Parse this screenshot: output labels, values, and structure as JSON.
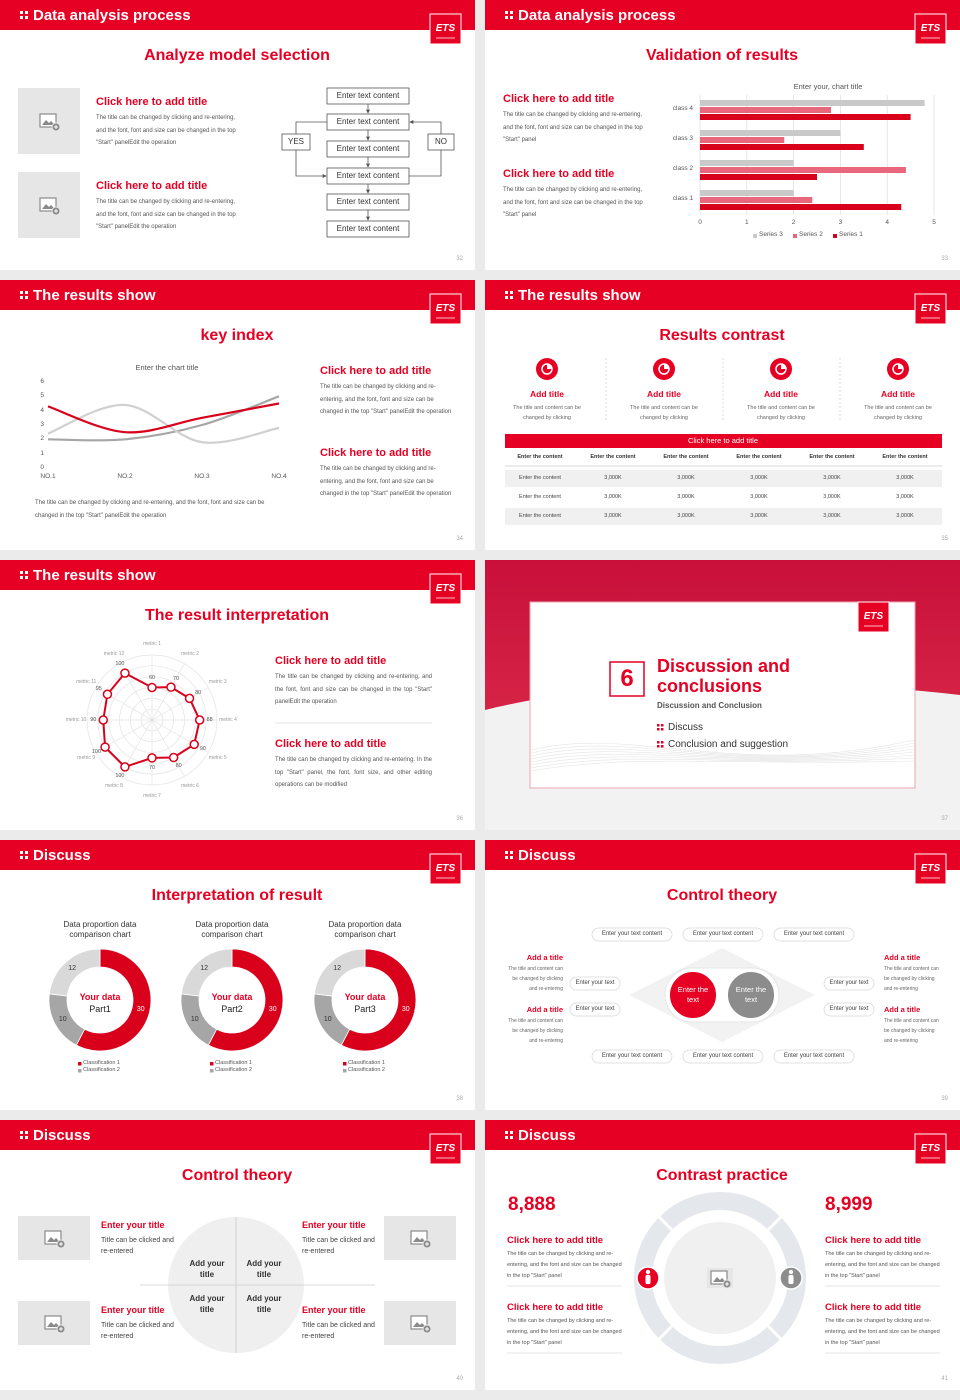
{
  "slides": [
    {
      "header": "Data analysis process",
      "logo": "ETS",
      "title": "Analyze model selection",
      "items": [
        {
          "title": "Click here to add title",
          "text": "The title can be changed by clicking and re-entering, and the font, font and size can be changed in the top \"Start\" panelEdit the operation"
        },
        {
          "title": "Click here to add title",
          "text": "The title can be changed by clicking and re-entering, and the font, font and size can be changed in the top \"Start\" panelEdit the operation"
        }
      ],
      "flow": {
        "steps": [
          "Enter text content",
          "Enter text content",
          "Enter text content",
          "Enter text content",
          "Enter text content",
          "Enter text content"
        ],
        "yes": "YES",
        "no": "NO"
      },
      "page": "32"
    },
    {
      "header": "Data analysis process",
      "logo": "ETS",
      "title": "Validation of results",
      "items": [
        {
          "title": "Click here to add title",
          "text": "The title can be changed by clicking and re-entering, and the font, font and size can be changed in the top \"Start\" panel"
        },
        {
          "title": "Click here to add title",
          "text": "The title can be changed by clicking and re-entering, and the font, font and size can be changed in the top \"Start\" panel"
        }
      ],
      "chart_data": {
        "type": "bar",
        "orientation": "horizontal",
        "title": "Enter your, chart title",
        "categories": [
          "class 1",
          "class 2",
          "class 3",
          "class 4"
        ],
        "series": [
          {
            "name": "Series 1",
            "color": "#d9001b",
            "values": [
              4.3,
              2.5,
              3.5,
              4.5
            ]
          },
          {
            "name": "Series 2",
            "color": "#e9677d",
            "values": [
              2.4,
              4.4,
              1.8,
              2.8
            ]
          },
          {
            "name": "Series 3",
            "color": "#c9c9c9",
            "values": [
              2,
              2,
              3,
              4.8
            ]
          }
        ],
        "xlim": [
          0,
          5
        ],
        "xticks": [
          0,
          1,
          2,
          3,
          4,
          5
        ],
        "grid": true,
        "legend": "bottom"
      },
      "page": "33"
    },
    {
      "header": "The results show",
      "logo": "ETS",
      "title": "key index",
      "chart_data": {
        "type": "line",
        "title": "Enter the chart title",
        "categories": [
          "NO.1",
          "NO.2",
          "NO.3",
          "NO.4"
        ],
        "series": [
          {
            "color": "#d9001b",
            "values": [
              4.3,
              2.5,
              3.5,
              4.5
            ]
          },
          {
            "color": "#d0d0d0",
            "values": [
              2.4,
              4.4,
              1.8,
              2.8
            ]
          },
          {
            "color": "#a6a6a6",
            "values": [
              2,
              2,
              3,
              5
            ]
          }
        ],
        "ylim": [
          0,
          6
        ],
        "yticks": [
          0,
          1,
          2,
          3,
          4,
          5,
          6
        ],
        "smooth": true
      },
      "note": "The title can be changed by clicking and re-entering, and the font, font and size can be changed in the top \"Start\" panelEdit the operation",
      "items": [
        {
          "title": "Click here to add title",
          "text": "The title can be changed by clicking and re-entering, and the font, font and size can be changed in the top \"Start\" panelEdit the operation"
        },
        {
          "title": "Click here to add title",
          "text": "The title can be changed by clicking and re-entering, and the font, font and size can be changed in the top \"Start\" panelEdit the operation"
        }
      ],
      "page": "34"
    },
    {
      "header": "The results show",
      "logo": "ETS",
      "title": "Results contrast",
      "features": [
        {
          "title": "Add title",
          "text": "The title and content can be changed by clicking"
        },
        {
          "title": "Add title",
          "text": "The title and content can be changed by clicking"
        },
        {
          "title": "Add title",
          "text": "The title and content can be changed by clicking"
        },
        {
          "title": "Add title",
          "text": "The title and content can be changed by clicking"
        }
      ],
      "table": {
        "title": "Click here to add title",
        "header": [
          "Enter the content",
          "Enter the content",
          "Enter the content",
          "Enter the content",
          "Enter the content",
          "Enter the content"
        ],
        "rows": [
          [
            "Enter the content",
            "3,000K",
            "3,000K",
            "3,000K",
            "3,000K",
            "3,000K"
          ],
          [
            "Enter the content",
            "3,000K",
            "3,000K",
            "3,000K",
            "3,000K",
            "3,000K"
          ],
          [
            "Enter the content",
            "3,000K",
            "3,000K",
            "3,000K",
            "3,000K",
            "3,000K"
          ]
        ]
      },
      "page": "35"
    },
    {
      "header": "The results show",
      "logo": "ETS",
      "title": "The result interpretation",
      "chart_data": {
        "type": "radar",
        "categories": [
          "metric 1",
          "metric 2",
          "metric 3",
          "metric 4",
          "metric 5",
          "metric 6",
          "metric 7",
          "metric 8",
          "metric 9",
          "metric 10",
          "metric 11",
          "metric 12"
        ],
        "values": [
          60,
          70,
          80,
          88,
          90,
          80,
          70,
          100,
          100,
          90,
          95,
          100
        ],
        "color": "#d9001b",
        "rlim": [
          0,
          120
        ]
      },
      "items": [
        {
          "title": "Click here to add title",
          "text": "The title can be changed by clicking and re-entering, and the font, font and size can be changed in the top \"Start\" panelEdit the operation"
        },
        {
          "title": "Click here to add title",
          "text": "The title can be changed by clicking and re-entering. In the top \"Start\" panel, the font, font size, and other editing operations can be modified"
        }
      ],
      "page": "36"
    },
    {
      "logo": "ETS",
      "number": "6",
      "title": "Discussion and conclusions",
      "subtitle": "Discussion and Conclusion",
      "bullets": [
        "Discuss",
        "Conclusion and suggestion"
      ],
      "page": "37"
    },
    {
      "header": "Discuss",
      "logo": "ETS",
      "title": "Interpretation of result",
      "charts": [
        {
          "type": "donut",
          "title": "Data proportion data comparison chart",
          "center": [
            "Your data",
            "Part1"
          ],
          "values": [
            30,
            10,
            12
          ],
          "colors": [
            "#d9001b",
            "#a6a6a6",
            "#d9d9d9"
          ],
          "legend": [
            "Classification 1",
            "Classification 2"
          ]
        },
        {
          "type": "donut",
          "title": "Data proportion data comparison chart",
          "center": [
            "Your data",
            "Part2"
          ],
          "values": [
            30,
            10,
            12
          ],
          "colors": [
            "#d9001b",
            "#a6a6a6",
            "#d9d9d9"
          ],
          "legend": [
            "Classification 1",
            "Classification 2"
          ]
        },
        {
          "type": "donut",
          "title": "Data proportion data comparison chart",
          "center": [
            "Your data",
            "Part3"
          ],
          "values": [
            30,
            10,
            12
          ],
          "colors": [
            "#d9001b",
            "#a6a6a6",
            "#d9d9d9"
          ],
          "legend": [
            "Classification 1",
            "Classification 2"
          ]
        }
      ],
      "page": "38"
    },
    {
      "header": "Discuss",
      "logo": "ETS",
      "title": "Control theory",
      "sides": [
        {
          "title": "Add a title",
          "text": "The title and content can be changed by clicking and re-entering"
        },
        {
          "title": "Add a title",
          "text": "The title and content can be changed by clicking and re-entering"
        },
        {
          "title": "Add a title",
          "text": "The title and content can be changed by clicking and re-entering"
        },
        {
          "title": "Add a title",
          "text": "The title and content can be changed by clicking and re-entering"
        }
      ],
      "top": [
        "Enter your text content",
        "Enter your text content",
        "Enter your text content"
      ],
      "bottom": [
        "Enter your text content",
        "Enter your text content",
        "Enter your text content"
      ],
      "left": [
        "Enter your text",
        "Enter your text"
      ],
      "right": [
        "Enter your text",
        "Enter your text"
      ],
      "centers": [
        "Enter the text",
        "Enter the text"
      ],
      "page": "39"
    },
    {
      "header": "Discuss",
      "logo": "ETS",
      "title": "Control theory",
      "items": [
        {
          "title": "Enter your title",
          "text": "Title can be clicked and re-entered"
        },
        {
          "title": "Enter your title",
          "text": "Title can be clicked and re-entered"
        },
        {
          "title": "Enter your title",
          "text": "Title can be clicked and re-entered"
        },
        {
          "title": "Enter your title",
          "text": "Title can be clicked and re-entered"
        }
      ],
      "quadrants": [
        "Add your title",
        "Add your title",
        "Add your title",
        "Add your title"
      ],
      "page": "40"
    },
    {
      "header": "Discuss",
      "logo": "ETS",
      "title": "Contrast practice",
      "numbers": [
        "8,888",
        "8,999"
      ],
      "items": [
        {
          "title": "Click here to add title",
          "text": "The title can be changed by clicking and re-entering, and the font and size can be changed in the top \"Start\" panel"
        },
        {
          "title": "Click here to add title",
          "text": "The title can be changed by clicking and re-entering, and the font and size can be changed in the top \"Start\" panel"
        },
        {
          "title": "Click here to add title",
          "text": "The title can be changed by clicking and re-entering, and the font and size can be changed in the top \"Start\" panel"
        },
        {
          "title": "Click here to add title",
          "text": "The title can be changed by clicking and re-entering, and the font and size can be changed in the top \"Start\" panel"
        }
      ],
      "page": "41"
    }
  ]
}
